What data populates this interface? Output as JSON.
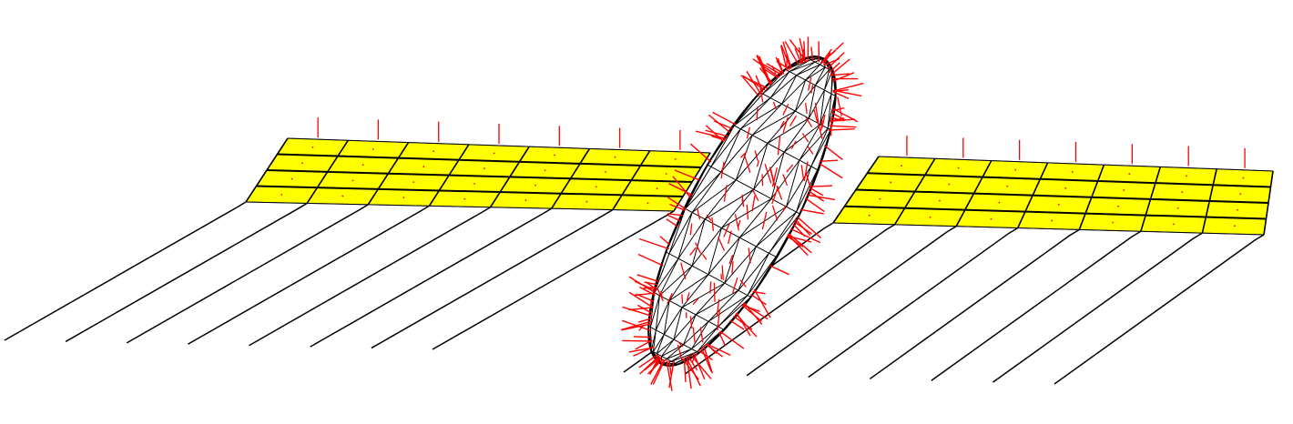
{
  "scene": {
    "description_visible_text": "",
    "colors": {
      "background": "#ffffff",
      "panel_fill": "#ffff00",
      "panel_edge": "#000000",
      "panel_outline": "#6f6fd0",
      "wake_line": "#000000",
      "mesh_line": "#000000",
      "normal_vector": "#ff0000"
    },
    "components": {
      "left_wing": {
        "spanwise_panels": 7,
        "chordwise_panels": 4
      },
      "right_wing": {
        "spanwise_panels": 7,
        "chordwise_panels": 4
      },
      "fuselage": {
        "shape": "ellipsoid",
        "mesh": "triangulated"
      },
      "wake": {
        "left_lines": 8,
        "right_lines": 8
      }
    }
  }
}
